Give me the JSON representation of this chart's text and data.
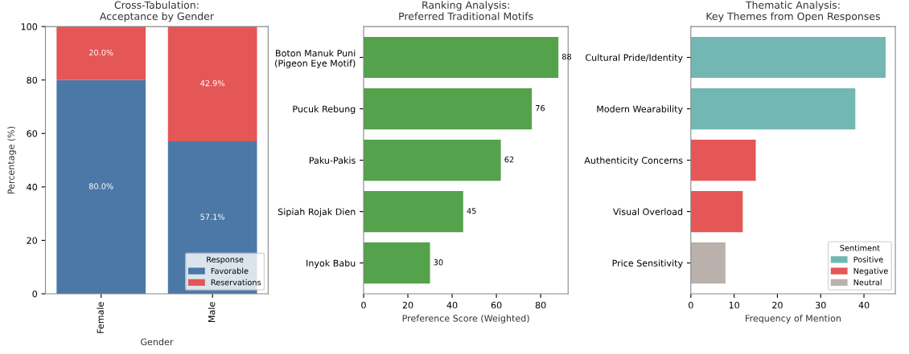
{
  "chart_data": [
    {
      "type": "bar",
      "title": "Cross-Tabulation:\nAcceptance by Gender",
      "xlabel": "Gender",
      "ylabel": "Percentage (%)",
      "categories": [
        "Female",
        "Male"
      ],
      "stacked": true,
      "ylim": [
        0,
        100
      ],
      "yticks": [
        0,
        20,
        40,
        60,
        80,
        100
      ],
      "legend": "bottom right",
      "legend_title": "Response",
      "grid": false,
      "series": [
        {
          "name": "Favorable",
          "color": "#4c78a8",
          "values": [
            80.0,
            57.1
          ],
          "value_labels": [
            "80.0%",
            "57.1%"
          ]
        },
        {
          "name": "Reservations",
          "color": "#e45756",
          "values": [
            20.0,
            42.9
          ],
          "value_labels": [
            "20.0%",
            "42.9%"
          ]
        }
      ]
    },
    {
      "type": "bar",
      "orientation": "horizontal",
      "title": "Ranking Analysis:\nPreferred Traditional Motifs",
      "xlabel": "Preference Score (Weighted)",
      "categories": [
        "Boton Manuk Puni\n(Pigeon Eye Motif)",
        "Pucuk Rebung",
        "Paku-Pakis",
        "Sipiah Rojak Dien",
        "Inyok Babu"
      ],
      "values": [
        88,
        76,
        62,
        45,
        30
      ],
      "color": "#54a24b",
      "data_labels": true,
      "xlim": [
        0,
        92.4
      ],
      "xticks": [
        0,
        20,
        40,
        60,
        80
      ],
      "grid": false
    },
    {
      "type": "bar",
      "orientation": "horizontal",
      "stacked": true,
      "title": "Thematic Analysis:\nKey Themes from Open Responses",
      "xlabel": "Frequency of Mention",
      "categories": [
        "Cultural Pride/Identity",
        "Modern Wearability",
        "Authenticity Concerns",
        "Visual Overload",
        "Price Sensitivity"
      ],
      "xlim": [
        0,
        47.25
      ],
      "xticks": [
        0,
        10,
        20,
        30,
        40
      ],
      "legend": "bottom right",
      "legend_title": "Sentiment",
      "grid": false,
      "series": [
        {
          "name": "Positive",
          "color": "#72b7b2",
          "values": [
            45,
            38,
            null,
            null,
            null
          ]
        },
        {
          "name": "Negative",
          "color": "#e45756",
          "values": [
            null,
            null,
            15,
            12,
            null
          ]
        },
        {
          "name": "Neutral",
          "color": "#bab0ac",
          "values": [
            null,
            null,
            null,
            null,
            8
          ]
        }
      ]
    }
  ]
}
